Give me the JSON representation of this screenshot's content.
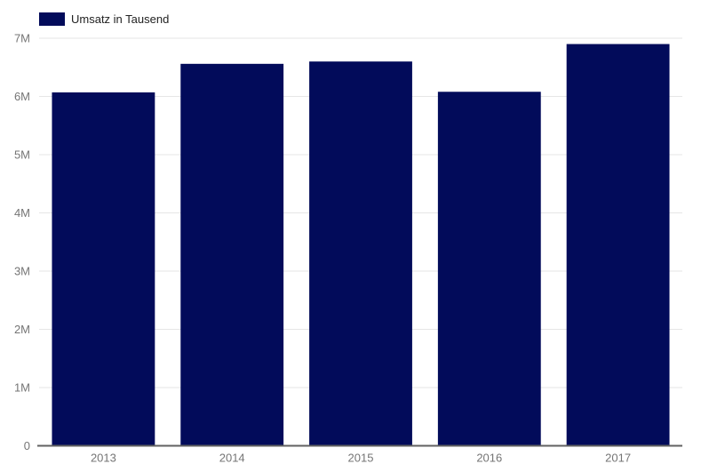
{
  "legend": {
    "label": "Umsatz in Tausend"
  },
  "chart_data": {
    "type": "bar",
    "title": "",
    "categories": [
      "2013",
      "2014",
      "2015",
      "2016",
      "2017"
    ],
    "series": [
      {
        "name": "Umsatz in Tausend",
        "values": [
          6070000,
          6560000,
          6600000,
          6080000,
          6900000
        ]
      }
    ],
    "values": [
      6070000,
      6560000,
      6600000,
      6080000,
      6900000
    ],
    "ylim": [
      0,
      7000000
    ],
    "ytick_values": [
      0,
      1000000,
      2000000,
      3000000,
      4000000,
      5000000,
      6000000,
      7000000
    ],
    "ytick_labels": [
      "0",
      "1M",
      "2M",
      "3M",
      "4M",
      "5M",
      "6M",
      "7M"
    ],
    "grid": true,
    "legend_position": "top-left",
    "colors": {
      "bar": "#020b5a",
      "gridline": "#e6e6e6",
      "axis_line": "#616161",
      "tick_text": "#757575",
      "legend_text": "#222222",
      "background": "#ffffff"
    }
  }
}
